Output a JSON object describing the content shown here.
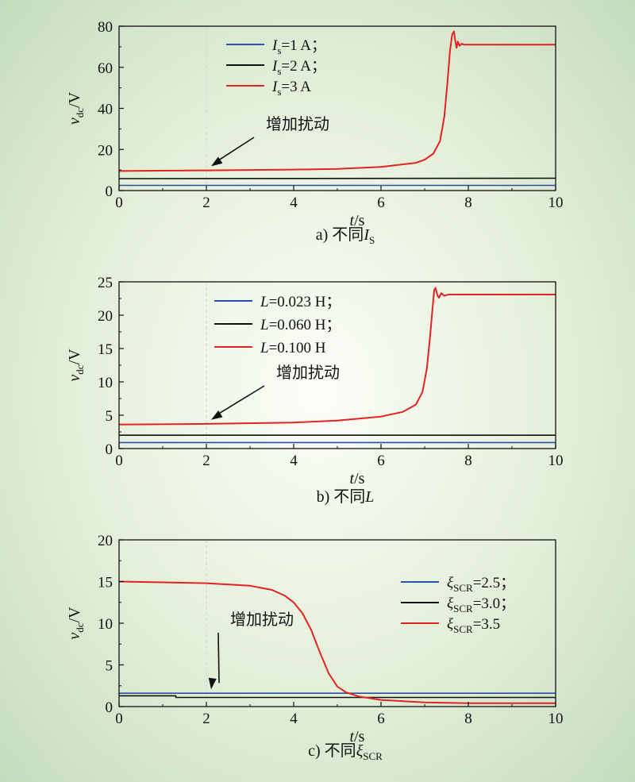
{
  "chart_data": [
    {
      "type": "line",
      "panel": "a",
      "caption": "a) 不同I",
      "caption_sub": "S",
      "xlabel": "t",
      "xlabel_unit": "/s",
      "ylabel": "v",
      "ylabel_sub": "dc",
      "ylabel_unit": "/V",
      "xlim": [
        0,
        10
      ],
      "ylim": [
        0,
        80
      ],
      "xticks": [
        0,
        2,
        4,
        6,
        8,
        10
      ],
      "yticks": [
        0,
        20,
        40,
        60,
        80
      ],
      "annotation": {
        "text": "增加扰动",
        "point": [
          2.0,
          9.5
        ]
      },
      "legend_position": "top-left",
      "series": [
        {
          "label": "I",
          "sub": "s",
          "value": "=1 A；",
          "color": "#2a4fa8",
          "x": [
            0,
            10
          ],
          "y": [
            2.5,
            2.5
          ]
        },
        {
          "label": "I",
          "sub": "s",
          "value": "=2 A；",
          "color": "#111111",
          "x": [
            0,
            10
          ],
          "y": [
            5.8,
            6.0
          ]
        },
        {
          "label": "I",
          "sub": "s",
          "value": "=3 A",
          "color": "#e32222",
          "x": [
            0,
            2,
            4,
            5,
            6,
            6.8,
            7.0,
            7.2,
            7.35,
            7.45,
            7.52,
            7.58,
            7.63,
            7.67,
            7.7,
            7.73,
            7.76,
            7.8,
            7.85,
            7.9,
            8,
            10
          ],
          "y": [
            9.5,
            9.8,
            10.2,
            10.5,
            11.5,
            13.5,
            15,
            18,
            24,
            36,
            52,
            68,
            76,
            77.5,
            73,
            69.5,
            72.5,
            70.5,
            71.5,
            71,
            71,
            71
          ]
        }
      ]
    },
    {
      "type": "line",
      "panel": "b",
      "caption": "b) 不同L",
      "xlabel": "t",
      "xlabel_unit": "/s",
      "ylabel": "v",
      "ylabel_sub": "dc",
      "ylabel_unit": "/V",
      "xlim": [
        0,
        10
      ],
      "ylim": [
        0,
        25
      ],
      "xticks": [
        0,
        2,
        4,
        6,
        8,
        10
      ],
      "yticks": [
        0,
        5,
        10,
        15,
        20,
        25
      ],
      "annotation": {
        "text": "增加扰动",
        "point": [
          2.0,
          3.6
        ]
      },
      "legend_position": "top-left",
      "series": [
        {
          "label": "L",
          "value": "=0.023 H；",
          "color": "#2a4fa8",
          "x": [
            0,
            10
          ],
          "y": [
            0.9,
            0.9
          ]
        },
        {
          "label": "L",
          "value": "=0.060 H；",
          "color": "#111111",
          "x": [
            0,
            10
          ],
          "y": [
            2.0,
            2.0
          ]
        },
        {
          "label": "L",
          "value": "=0.100 H",
          "color": "#e32222",
          "x": [
            0,
            2,
            4,
            5,
            6,
            6.5,
            6.8,
            6.95,
            7.05,
            7.12,
            7.18,
            7.22,
            7.25,
            7.29,
            7.33,
            7.38,
            7.45,
            7.55,
            8,
            10
          ],
          "y": [
            3.6,
            3.7,
            3.9,
            4.2,
            4.8,
            5.5,
            6.6,
            8.5,
            12,
            16.5,
            21,
            23.8,
            24.1,
            23.0,
            22.6,
            23.3,
            22.9,
            23.1,
            23.1,
            23.1
          ]
        }
      ]
    },
    {
      "type": "line",
      "panel": "c",
      "caption": "c) 不同ξ",
      "caption_sub": "SCR",
      "xlabel": "t",
      "xlabel_unit": "/s",
      "ylabel": "v",
      "ylabel_sub": "dc",
      "ylabel_unit": "/V",
      "xlim": [
        0,
        10
      ],
      "ylim": [
        0,
        20
      ],
      "xticks": [
        0,
        2,
        4,
        6,
        8,
        10
      ],
      "yticks": [
        0,
        5,
        10,
        15,
        20
      ],
      "annotation": {
        "text": "增加扰动",
        "point": [
          2.0,
          1.5
        ]
      },
      "legend_position": "middle-right",
      "series": [
        {
          "label": "ξ",
          "sub": "SCR",
          "value": "=2.5；",
          "color": "#2a4fa8",
          "x": [
            0,
            10
          ],
          "y": [
            1.6,
            1.6
          ]
        },
        {
          "label": "ξ",
          "sub": "SCR",
          "value": "=3.0；",
          "color": "#111111",
          "x": [
            0,
            1.3,
            1.3,
            10
          ],
          "y": [
            1.3,
            1.3,
            1.1,
            1.1
          ]
        },
        {
          "label": "ξ",
          "sub": "SCR",
          "value": "=3.5",
          "color": "#e32222",
          "x": [
            0,
            1,
            2,
            3,
            3.5,
            3.8,
            4.0,
            4.2,
            4.4,
            4.6,
            4.8,
            5.0,
            5.2,
            5.5,
            6,
            7,
            8,
            10
          ],
          "y": [
            15,
            14.9,
            14.8,
            14.5,
            14.0,
            13.3,
            12.5,
            11.2,
            9.2,
            6.5,
            4.0,
            2.4,
            1.7,
            1.2,
            0.8,
            0.5,
            0.4,
            0.4
          ]
        }
      ]
    }
  ]
}
